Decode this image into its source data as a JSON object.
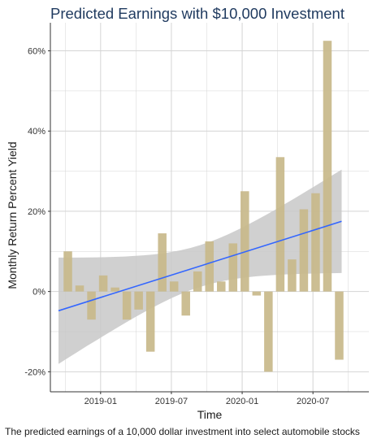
{
  "chart_data": {
    "type": "bar",
    "title": "Predicted Earnings with $10,000 Investment",
    "xlabel": "Time",
    "ylabel": "Monthly Return Percent Yield",
    "caption": "The predicted earnings of a 10,000 dollar investment into select automobile stocks",
    "x_tick_labels": [
      "2019-01",
      "2019-07",
      "2020-01",
      "2020-07"
    ],
    "y_tick_labels": [
      "-20%",
      "0%",
      "20%",
      "40%",
      "60%"
    ],
    "y_ticks": [
      -20,
      0,
      20,
      40,
      60
    ],
    "ylim": [
      -25,
      67
    ],
    "categories": [
      "2018-10",
      "2018-11",
      "2018-12",
      "2019-01",
      "2019-02",
      "2019-03",
      "2019-04",
      "2019-05",
      "2019-06",
      "2019-07",
      "2019-08",
      "2019-09",
      "2019-10",
      "2019-11",
      "2019-12",
      "2020-01",
      "2020-02",
      "2020-03",
      "2020-04",
      "2020-05",
      "2020-06",
      "2020-07",
      "2020-08",
      "2020-09"
    ],
    "values": [
      10,
      1.5,
      -7,
      4,
      1,
      -7,
      -4.5,
      -15,
      14.5,
      2.5,
      -6,
      5,
      12.5,
      2.5,
      12,
      25,
      -1,
      -20,
      33.5,
      8,
      20.5,
      24.5,
      62.5,
      -17
    ],
    "trend": {
      "start": -4.8,
      "end": 17.5,
      "ci_start": [
        -18.2,
        8.3
      ],
      "ci_end": [
        4.8,
        30.6
      ]
    },
    "colors": {
      "bar": "#c8b88a",
      "trend": "#3366ff",
      "ribbon": "#c8c8c8",
      "grid": "#d4d4d4",
      "axis": "#333333"
    },
    "grid": true
  }
}
